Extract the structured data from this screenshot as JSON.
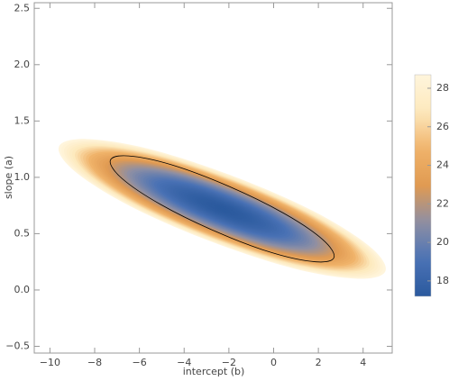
{
  "chart_data": {
    "type": "density",
    "xlabel": "intercept (b)",
    "ylabel": "slope (a)",
    "xlim": [
      -10.7,
      5.3
    ],
    "ylim": [
      -0.56,
      2.55
    ],
    "xticks": [
      {
        "value": -10,
        "label": "−10"
      },
      {
        "value": -8,
        "label": "−8"
      },
      {
        "value": -6,
        "label": "−6"
      },
      {
        "value": -4,
        "label": "−4"
      },
      {
        "value": -2,
        "label": "−2"
      },
      0,
      2,
      4
    ],
    "yticks": [
      {
        "value": -0.5,
        "label": "−0.5"
      },
      {
        "value": 0,
        "label": "0.0"
      },
      0.5,
      {
        "value": 1,
        "label": "1.0"
      },
      1.5,
      {
        "value": 2,
        "label": "2.0"
      },
      2.5
    ],
    "minimum": {
      "x": -2.3,
      "y": 0.72
    },
    "outer": {
      "x": [
        5.0,
        4.27,
        1.78,
        -1.8,
        -5.52,
        -8.37,
        -9.6,
        -8.87,
        -6.38,
        -2.8,
        0.92,
        3.77
      ],
      "y": [
        0.17,
        0.39,
        0.7,
        1.01,
        1.25,
        1.34,
        1.27,
        1.05,
        0.74,
        0.43,
        0.19,
        0.1
      ]
    },
    "contour": {
      "x": [
        2.7,
        2.18,
        0.46,
        -2.0,
        -4.54,
        -6.48,
        -7.3,
        -6.78,
        -5.06,
        -2.6,
        -0.06,
        1.88
      ],
      "y": [
        0.29,
        0.45,
        0.68,
        0.92,
        1.11,
        1.19,
        1.15,
        0.99,
        0.76,
        0.52,
        0.33,
        0.25
      ],
      "color": "#000000"
    },
    "colorbar": {
      "zlim": [
        17.2,
        28.7
      ],
      "ticks": [
        18,
        20,
        22,
        24,
        26,
        28
      ],
      "colors": [
        "#2b5a9e",
        "#4a72b5",
        "#8e8fa4",
        "#e09a52",
        "#f0b36a",
        "#fde9bd",
        "#fff5dc"
      ]
    }
  }
}
